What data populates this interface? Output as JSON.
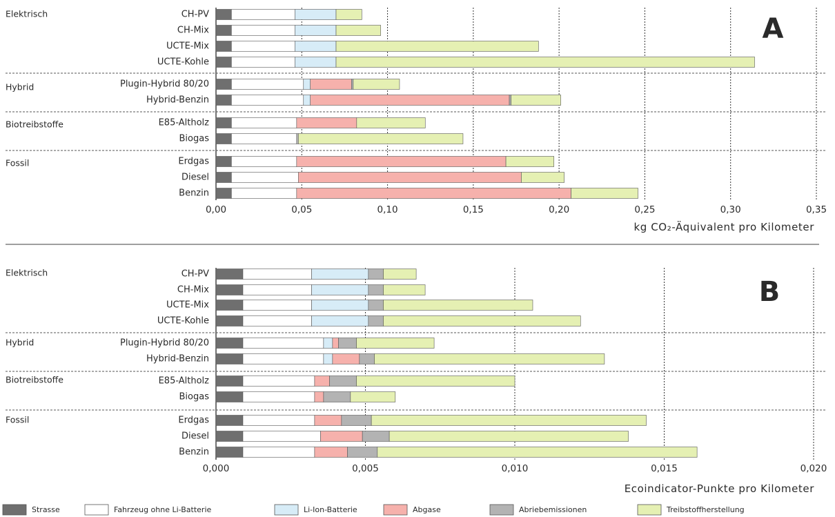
{
  "colors": {
    "Strasse": "#6f6f6f",
    "Fahrzeug ohne Li-Batterie": "#ffffff",
    "Li-Ion-Batterie": "#d7ecf7",
    "Abgase": "#f6b1ac",
    "Abriebemissionen": "#b3b3b3",
    "Treibstoffherstellung": "#e5f0b3"
  },
  "legend": [
    {
      "key": "Strasse",
      "label": "Strasse"
    },
    {
      "key": "Fahrzeug ohne Li-Batterie",
      "label": "Fahrzeug ohne Li-Batterie"
    },
    {
      "key": "Li-Ion-Batterie",
      "label": "Li-Ion-Batterie"
    },
    {
      "key": "Abgase",
      "label": "Abgase"
    },
    {
      "key": "Abriebemissionen",
      "label": "Abriebemissionen"
    },
    {
      "key": "Treibstoffherstellung",
      "label": "Treibstoffherstellung"
    }
  ],
  "chart_data": [
    {
      "type": "bar",
      "orientation": "horizontal",
      "stacked": true,
      "panel_label": "A",
      "xlabel": "kg CO₂-Äquivalent pro Kilometer",
      "xlim": [
        0,
        0.35
      ],
      "xticks": [
        "0,00",
        "0,05",
        "0,10",
        "0,15",
        "0,20",
        "0,25",
        "0,30",
        "0,35"
      ],
      "groups": [
        {
          "name": "Elektrisch",
          "categories": [
            "CH-PV",
            "CH-Mix",
            "UCTE-Mix",
            "UCTE-Kohle"
          ]
        },
        {
          "name": "Hybrid",
          "categories": [
            "Plugin-Hybrid 80/20",
            "Hybrid-Benzin"
          ]
        },
        {
          "name": "Biotreibstoffe",
          "categories": [
            "E85-Altholz",
            "Biogas"
          ]
        },
        {
          "name": "Fossil",
          "categories": [
            "Erdgas",
            "Diesel",
            "Benzin"
          ]
        }
      ],
      "categories": [
        "CH-PV",
        "CH-Mix",
        "UCTE-Mix",
        "UCTE-Kohle",
        "Plugin-Hybrid 80/20",
        "Hybrid-Benzin",
        "E85-Altholz",
        "Biogas",
        "Erdgas",
        "Diesel",
        "Benzin"
      ],
      "series": [
        {
          "name": "Strasse",
          "values": [
            0.009,
            0.009,
            0.009,
            0.009,
            0.009,
            0.009,
            0.009,
            0.009,
            0.009,
            0.009,
            0.009
          ]
        },
        {
          "name": "Fahrzeug ohne Li-Batterie",
          "values": [
            0.037,
            0.037,
            0.037,
            0.037,
            0.042,
            0.042,
            0.038,
            0.038,
            0.038,
            0.039,
            0.038
          ]
        },
        {
          "name": "Li-Ion-Batterie",
          "values": [
            0.024,
            0.024,
            0.024,
            0.024,
            0.004,
            0.004,
            0,
            0,
            0,
            0,
            0
          ]
        },
        {
          "name": "Abgase",
          "values": [
            0,
            0,
            0,
            0,
            0.024,
            0.116,
            0.035,
            0,
            0.122,
            0.13,
            0.16
          ]
        },
        {
          "name": "Abriebemissionen",
          "values": [
            0,
            0,
            0,
            0,
            0.001,
            0.001,
            0,
            0.001,
            0,
            0,
            0
          ]
        },
        {
          "name": "Treibstoffherstellung",
          "values": [
            0.015,
            0.026,
            0.118,
            0.244,
            0.027,
            0.029,
            0.04,
            0.096,
            0.028,
            0.025,
            0.039
          ]
        }
      ]
    },
    {
      "type": "bar",
      "orientation": "horizontal",
      "stacked": true,
      "panel_label": "B",
      "xlabel": "Ecoindicator-Punkte pro Kilometer",
      "xlim": [
        0,
        0.02
      ],
      "xticks": [
        "0,000",
        "0,005",
        "0,010",
        "0,015",
        "0,020"
      ],
      "groups": [
        {
          "name": "Elektrisch",
          "categories": [
            "CH-PV",
            "CH-Mix",
            "UCTE-Mix",
            "UCTE-Kohle"
          ]
        },
        {
          "name": "Hybrid",
          "categories": [
            "Plugin-Hybrid 80/20",
            "Hybrid-Benzin"
          ]
        },
        {
          "name": "Biotreibstoffe",
          "categories": [
            "E85-Altholz",
            "Biogas"
          ]
        },
        {
          "name": "Fossil",
          "categories": [
            "Erdgas",
            "Diesel",
            "Benzin"
          ]
        }
      ],
      "categories": [
        "CH-PV",
        "CH-Mix",
        "UCTE-Mix",
        "UCTE-Kohle",
        "Plugin-Hybrid 80/20",
        "Hybrid-Benzin",
        "E85-Altholz",
        "Biogas",
        "Erdgas",
        "Diesel",
        "Benzin"
      ],
      "series": [
        {
          "name": "Strasse",
          "values": [
            0.0009,
            0.0009,
            0.0009,
            0.0009,
            0.0009,
            0.0009,
            0.0009,
            0.0009,
            0.0009,
            0.0009,
            0.0009
          ]
        },
        {
          "name": "Fahrzeug ohne Li-Batterie",
          "values": [
            0.0023,
            0.0023,
            0.0023,
            0.0023,
            0.0027,
            0.0027,
            0.0024,
            0.0024,
            0.0024,
            0.0026,
            0.0024
          ]
        },
        {
          "name": "Li-Ion-Batterie",
          "values": [
            0.0019,
            0.0019,
            0.0019,
            0.0019,
            0.0003,
            0.0003,
            0,
            0,
            0,
            0,
            0
          ]
        },
        {
          "name": "Abgase",
          "values": [
            0,
            0,
            0,
            0,
            0.0002,
            0.0009,
            0.0005,
            0.0003,
            0.0009,
            0.0014,
            0.0011
          ]
        },
        {
          "name": "Abriebemissionen",
          "values": [
            0.0005,
            0.0005,
            0.0005,
            0.0005,
            0.0006,
            0.0005,
            0.0009,
            0.0009,
            0.001,
            0.0009,
            0.001
          ]
        },
        {
          "name": "Treibstoffherstellung",
          "values": [
            0.0011,
            0.0014,
            0.005,
            0.0066,
            0.0026,
            0.0077,
            0.0053,
            0.0015,
            0.0092,
            0.008,
            0.0107
          ]
        }
      ]
    }
  ]
}
